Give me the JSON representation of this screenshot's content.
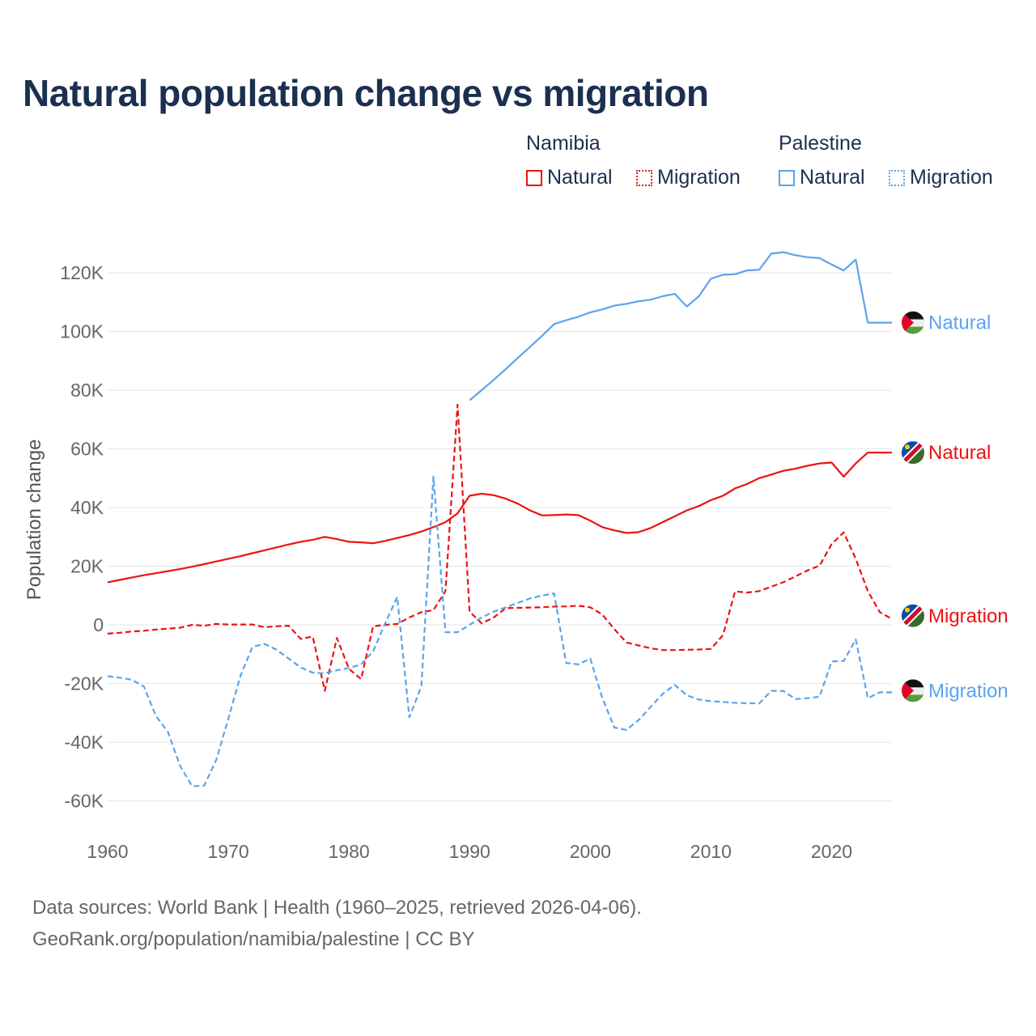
{
  "chart_data": {
    "type": "line",
    "title": "Natural population change vs migration",
    "ylabel": "Population change",
    "xlabel": "",
    "xlim": [
      1960,
      2025
    ],
    "ylim": [
      -70000,
      130000
    ],
    "x_ticks": [
      1960,
      1970,
      1980,
      1990,
      2000,
      2010,
      2020
    ],
    "y_ticks": [
      -60000,
      -40000,
      -20000,
      0,
      20000,
      40000,
      60000,
      80000,
      100000,
      120000
    ],
    "y_tick_labels": [
      "-60K",
      "-40K",
      "-20K",
      "0",
      "20K",
      "40K",
      "60K",
      "80K",
      "100K",
      "120K"
    ],
    "grid": true,
    "legend_groups": [
      {
        "country": "Namibia",
        "items": [
          "Natural",
          "Migration"
        ]
      },
      {
        "country": "Palestine",
        "items": [
          "Natural",
          "Migration"
        ]
      }
    ],
    "series": [
      {
        "name": "Namibia Natural",
        "country": "Namibia",
        "kind": "Natural",
        "end_label": "Natural",
        "color": "#ee1111",
        "dash": false,
        "start": 1960,
        "values": [
          14.5,
          15.3,
          16.1,
          16.9,
          17.6,
          18.3,
          19.0,
          19.8,
          20.7,
          21.6,
          22.5,
          23.4,
          24.4,
          25.4,
          26.4,
          27.4,
          28.3,
          29.0,
          30.0,
          29.2,
          28.3,
          28.1,
          27.8,
          28.6,
          29.6,
          30.6,
          31.8,
          33.3,
          35.0,
          38.0,
          44.0,
          44.7,
          44.2,
          43.0,
          41.3,
          39.0,
          37.3,
          37.4,
          37.6,
          37.4,
          35.5,
          33.3,
          32.2,
          31.3,
          31.6,
          33.0,
          35.0,
          37.0,
          39.0,
          40.5,
          42.5,
          44.0,
          46.5,
          48.0,
          50.0,
          51.2,
          52.5,
          53.2,
          54.2,
          55.0,
          55.3,
          50.5,
          55.0,
          58.7,
          58.7,
          58.7
        ]
      },
      {
        "name": "Namibia Migration",
        "country": "Namibia",
        "kind": "Migration",
        "end_label": "Migration",
        "color": "#ee1111",
        "dash": true,
        "start": 1960,
        "values": [
          -3.0,
          -2.7,
          -2.3,
          -2.0,
          -1.6,
          -1.3,
          -1.0,
          0.0,
          -0.3,
          0.3,
          0.1,
          0.1,
          0.1,
          -0.8,
          -0.5,
          -0.3,
          -4.8,
          -4.0,
          -22.5,
          -4.5,
          -15.0,
          -18.5,
          -0.5,
          0.0,
          0.3,
          2.5,
          4.3,
          5.0,
          11.5,
          75.0,
          4.5,
          0.5,
          2.5,
          5.7,
          5.8,
          5.9,
          6.0,
          6.2,
          6.3,
          6.5,
          6.0,
          3.5,
          -1.5,
          -6.0,
          -7.0,
          -8.0,
          -8.6,
          -8.6,
          -8.5,
          -8.4,
          -8.2,
          -3.5,
          11.4,
          11.0,
          11.5,
          13.0,
          14.5,
          16.5,
          18.5,
          20.2,
          27.5,
          31.5,
          22.5,
          11.5,
          4.3,
          2.0
        ]
      },
      {
        "name": "Palestine Natural",
        "country": "Palestine",
        "kind": "Natural",
        "end_label": "Natural",
        "color": "#5ba4ec",
        "dash": false,
        "start": 1990,
        "values": [
          76.5,
          80.0,
          83.5,
          87.2,
          91.0,
          94.7,
          98.5,
          102.5,
          103.8,
          105.0,
          106.5,
          107.5,
          108.8,
          109.4,
          110.3,
          110.8,
          112.0,
          112.8,
          108.5,
          112.0,
          118.0,
          119.3,
          119.5,
          120.8,
          121.0,
          126.5,
          127.0,
          126.0,
          125.3,
          125.0,
          122.8,
          120.8,
          124.5,
          103.0,
          103.0,
          103.0
        ]
      },
      {
        "name": "Palestine Migration",
        "country": "Palestine",
        "kind": "Migration",
        "end_label": "Migration",
        "color": "#5ba4ec",
        "dash": true,
        "start": 1960,
        "values": [
          -17.5,
          -18.0,
          -18.7,
          -21.0,
          -31.0,
          -36.5,
          -48.0,
          -55.0,
          -54.8,
          -46.0,
          -32.0,
          -17.5,
          -7.5,
          -6.5,
          -8.5,
          -11.5,
          -14.5,
          -16.3,
          -16.5,
          -15.5,
          -14.7,
          -13.5,
          -9.0,
          0.5,
          9.5,
          -31.5,
          -21.0,
          50.5,
          -2.5,
          -2.5,
          0.0,
          2.5,
          4.5,
          6.0,
          7.5,
          9.0,
          10.0,
          10.7,
          -13.0,
          -13.5,
          -11.5,
          -25.0,
          -35.0,
          -35.8,
          -32.5,
          -28.0,
          -23.5,
          -20.5,
          -24.0,
          -25.5,
          -26.0,
          -26.3,
          -26.6,
          -26.7,
          -26.8,
          -22.5,
          -22.5,
          -25.3,
          -25.0,
          -24.5,
          -12.5,
          -12.3,
          -5.0,
          -25.0,
          -23.0,
          -23.0
        ]
      }
    ],
    "value_unit": "thousands"
  },
  "footer": {
    "line1": "Data sources: World Bank | Health (1960–2025, retrieved 2026-04-06).",
    "line2": "GeoRank.org/population/namibia/palestine | CC BY"
  }
}
